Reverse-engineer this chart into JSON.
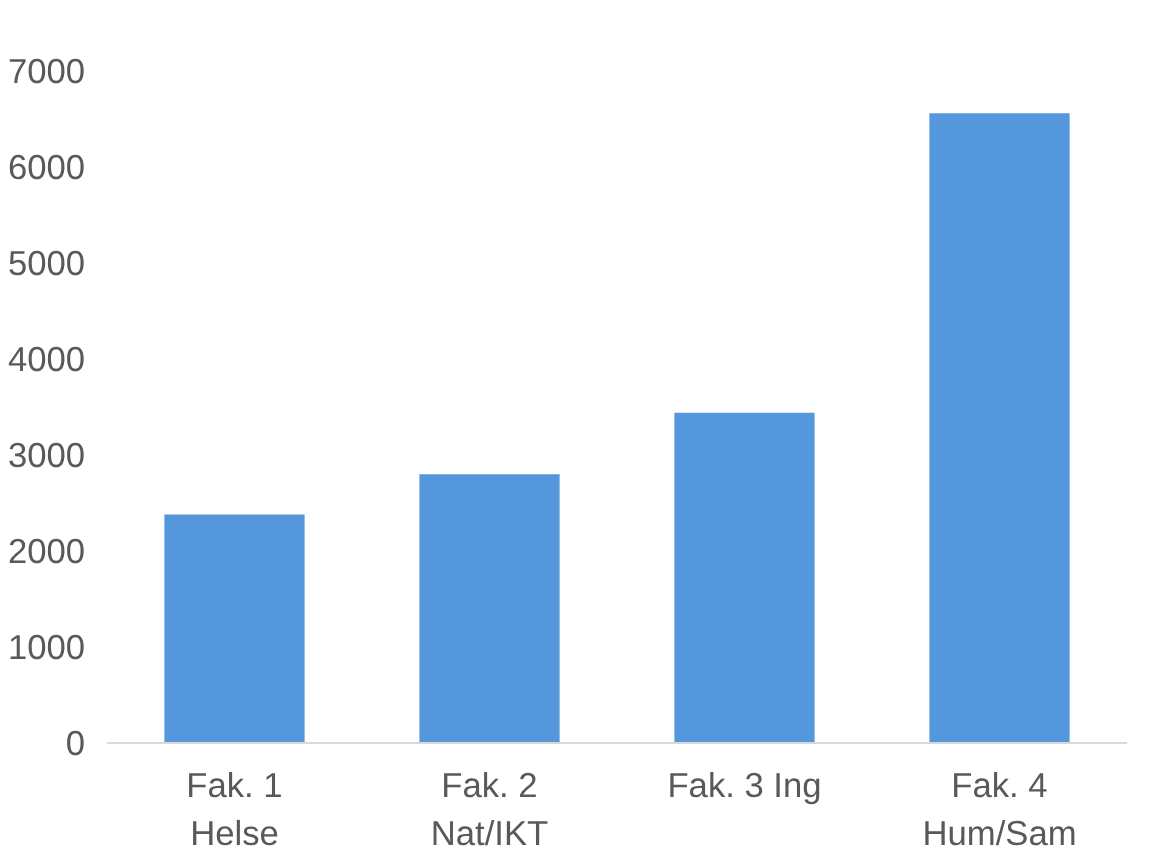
{
  "chart_data": {
    "type": "bar",
    "categories": [
      "Fak. 1\nHelse",
      "Fak. 2\nNat/IKT",
      "Fak. 3 Ing",
      "Fak. 4\nHum/Sam"
    ],
    "values": [
      2380,
      2800,
      3440,
      6560
    ],
    "color": "#5597dc",
    "ylim": [
      0,
      7000
    ],
    "yticks": [
      0,
      1000,
      2000,
      3000,
      4000,
      5000,
      6000,
      7000
    ]
  }
}
